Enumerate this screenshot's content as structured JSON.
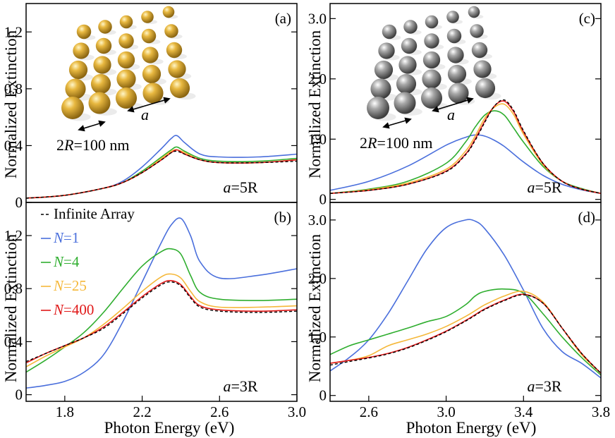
{
  "colors": {
    "N1": "#4a6fdc",
    "N4": "#2fae2f",
    "N25": "#f5b83a",
    "N400": "#e01818",
    "infinite": "#000000",
    "gold": "#d4a52c",
    "silver": "#9a9a9a"
  },
  "y_axis_label": "Normalized Extinction",
  "x_axis_label": "Photon Energy (eV)",
  "legend": [
    {
      "key": "infinite",
      "label": "Infinite Array",
      "dash": true
    },
    {
      "key": "N1",
      "prefix": "N",
      "label": "=1"
    },
    {
      "key": "N4",
      "prefix": "N",
      "label": "=4"
    },
    {
      "key": "N25",
      "prefix": "N",
      "label": "=25"
    },
    {
      "key": "N400",
      "prefix": "N",
      "label": "=400"
    }
  ],
  "insets": {
    "gold": {
      "spacing_label": "a",
      "size_prefix": "2",
      "size_symbol": "R",
      "size_suffix": "=100 nm",
      "material_icon": "gold-nanoparticle-array"
    },
    "silver": {
      "spacing_label": "a",
      "size_prefix": "2",
      "size_symbol": "R",
      "size_suffix": "=100 nm",
      "material_icon": "silver-nanoparticle-array"
    }
  },
  "chart_data": [
    {
      "id": "a",
      "type": "line",
      "panel_label": "(a)",
      "annotation": {
        "symbol": "a",
        "text": "=5R"
      },
      "xlabel": "",
      "ylabel": "Normalized Extinction",
      "xlim": [
        1.6,
        3.0
      ],
      "ylim": [
        0,
        1.4
      ],
      "xticks": [],
      "yticks": [
        0,
        0.4,
        0.8,
        1.2
      ],
      "ytick_labels": [
        "0",
        "0.4",
        "0.8",
        "1.2"
      ],
      "x": [
        1.6,
        1.8,
        2.0,
        2.1,
        2.2,
        2.3,
        2.35,
        2.38,
        2.42,
        2.5,
        2.6,
        2.8,
        3.0
      ],
      "series": [
        {
          "name": "N=1",
          "key": "N1",
          "values": [
            0.03,
            0.05,
            0.1,
            0.15,
            0.25,
            0.38,
            0.45,
            0.47,
            0.42,
            0.34,
            0.32,
            0.32,
            0.34
          ]
        },
        {
          "name": "N=4",
          "key": "N4",
          "values": [
            0.03,
            0.05,
            0.1,
            0.14,
            0.22,
            0.32,
            0.37,
            0.39,
            0.36,
            0.31,
            0.29,
            0.29,
            0.31
          ]
        },
        {
          "name": "N=25",
          "key": "N25",
          "values": [
            0.03,
            0.05,
            0.1,
            0.14,
            0.21,
            0.31,
            0.36,
            0.37,
            0.35,
            0.3,
            0.28,
            0.28,
            0.3
          ]
        },
        {
          "name": "N=400",
          "key": "N400",
          "values": [
            0.03,
            0.05,
            0.1,
            0.14,
            0.21,
            0.3,
            0.35,
            0.37,
            0.34,
            0.3,
            0.28,
            0.28,
            0.3
          ]
        },
        {
          "name": "Infinite Array",
          "key": "infinite",
          "values": [
            0.03,
            0.05,
            0.1,
            0.14,
            0.21,
            0.3,
            0.35,
            0.36,
            0.34,
            0.3,
            0.28,
            0.28,
            0.29
          ]
        }
      ]
    },
    {
      "id": "b",
      "type": "line",
      "panel_label": "(b)",
      "annotation": {
        "symbol": "a",
        "text": "=3R"
      },
      "xlabel": "Photon Energy (eV)",
      "ylabel": "Normalized Extinction",
      "xlim": [
        1.6,
        3.0
      ],
      "ylim": [
        -0.05,
        1.45
      ],
      "xticks": [
        1.8,
        2.2,
        2.6,
        3.0
      ],
      "xtick_labels": [
        "1.8",
        "2.2",
        "2.6",
        "3.0"
      ],
      "yticks": [
        0,
        0.4,
        0.8,
        1.2
      ],
      "ytick_labels": [
        "0",
        "0.4",
        "0.8",
        "1.2"
      ],
      "x": [
        1.6,
        1.7,
        1.8,
        1.9,
        2.0,
        2.1,
        2.2,
        2.3,
        2.35,
        2.4,
        2.45,
        2.5,
        2.6,
        2.8,
        3.0
      ],
      "series": [
        {
          "name": "N=1",
          "key": "N1",
          "values": [
            0.05,
            0.07,
            0.1,
            0.17,
            0.3,
            0.55,
            0.85,
            1.15,
            1.28,
            1.33,
            1.2,
            1.0,
            0.88,
            0.9,
            0.95
          ]
        },
        {
          "name": "N=4",
          "key": "N4",
          "values": [
            0.17,
            0.26,
            0.36,
            0.47,
            0.62,
            0.8,
            0.97,
            1.08,
            1.1,
            1.06,
            0.9,
            0.77,
            0.72,
            0.71,
            0.72
          ]
        },
        {
          "name": "N=25",
          "key": "N25",
          "values": [
            0.21,
            0.29,
            0.36,
            0.43,
            0.53,
            0.65,
            0.78,
            0.89,
            0.91,
            0.88,
            0.78,
            0.7,
            0.66,
            0.66,
            0.67
          ]
        },
        {
          "name": "N=400",
          "key": "N400",
          "values": [
            0.24,
            0.31,
            0.37,
            0.43,
            0.51,
            0.62,
            0.74,
            0.84,
            0.86,
            0.83,
            0.74,
            0.67,
            0.64,
            0.63,
            0.64
          ]
        },
        {
          "name": "Infinite Array",
          "key": "infinite",
          "values": [
            0.25,
            0.31,
            0.37,
            0.43,
            0.5,
            0.61,
            0.73,
            0.83,
            0.85,
            0.82,
            0.73,
            0.66,
            0.63,
            0.62,
            0.63
          ]
        }
      ]
    },
    {
      "id": "c",
      "type": "line",
      "panel_label": "(c)",
      "annotation": {
        "symbol": "a",
        "text": "=5R"
      },
      "xlabel": "",
      "ylabel": "Normalized Extinction",
      "xlim": [
        2.4,
        3.8
      ],
      "ylim": [
        -0.05,
        3.25
      ],
      "xticks": [],
      "yticks": [
        0,
        1.0,
        2.0,
        3.0
      ],
      "ytick_labels": [
        "0",
        "1.0",
        "2.0",
        "3.0"
      ],
      "x": [
        2.4,
        2.6,
        2.8,
        3.0,
        3.1,
        3.15,
        3.2,
        3.25,
        3.3,
        3.35,
        3.4,
        3.5,
        3.6,
        3.7,
        3.8
      ],
      "series": [
        {
          "name": "N=1",
          "key": "N1",
          "values": [
            0.15,
            0.3,
            0.55,
            0.9,
            1.03,
            1.07,
            1.05,
            0.98,
            0.88,
            0.75,
            0.62,
            0.4,
            0.25,
            0.16,
            0.1
          ]
        },
        {
          "name": "N=4",
          "key": "N4",
          "values": [
            0.1,
            0.17,
            0.3,
            0.6,
            0.95,
            1.2,
            1.4,
            1.47,
            1.4,
            1.18,
            0.95,
            0.55,
            0.3,
            0.18,
            0.1
          ]
        },
        {
          "name": "N=25",
          "key": "N25",
          "values": [
            0.1,
            0.16,
            0.27,
            0.5,
            0.8,
            1.05,
            1.35,
            1.53,
            1.58,
            1.4,
            1.08,
            0.58,
            0.3,
            0.17,
            0.1
          ]
        },
        {
          "name": "N=400",
          "key": "N400",
          "values": [
            0.1,
            0.15,
            0.25,
            0.47,
            0.75,
            1.0,
            1.3,
            1.55,
            1.63,
            1.45,
            1.12,
            0.6,
            0.3,
            0.17,
            0.1
          ]
        },
        {
          "name": "Infinite Array",
          "key": "infinite",
          "values": [
            0.1,
            0.15,
            0.25,
            0.46,
            0.74,
            0.98,
            1.28,
            1.55,
            1.65,
            1.47,
            1.14,
            0.6,
            0.3,
            0.17,
            0.1
          ]
        }
      ]
    },
    {
      "id": "d",
      "type": "line",
      "panel_label": "(d)",
      "annotation": {
        "symbol": "a",
        "text": "=3R"
      },
      "xlabel": "Photon Energy (eV)",
      "ylabel": "Normalized Extinction",
      "xlim": [
        2.4,
        3.8
      ],
      "ylim": [
        -0.1,
        3.3
      ],
      "xticks": [
        2.6,
        3.0,
        3.4,
        3.8
      ],
      "xtick_labels": [
        "2.6",
        "3.0",
        "3.4",
        "3.8"
      ],
      "yticks": [
        0,
        1.0,
        2.0,
        3.0
      ],
      "ytick_labels": [
        "0",
        "1.0",
        "2.0",
        "3.0"
      ],
      "x": [
        2.4,
        2.5,
        2.6,
        2.7,
        2.8,
        2.9,
        3.0,
        3.1,
        3.15,
        3.2,
        3.3,
        3.4,
        3.5,
        3.6,
        3.7,
        3.8
      ],
      "series": [
        {
          "name": "N=1",
          "key": "N1",
          "values": [
            0.42,
            0.65,
            0.95,
            1.4,
            1.95,
            2.5,
            2.87,
            3.0,
            2.98,
            2.85,
            2.4,
            1.8,
            1.15,
            0.75,
            0.55,
            0.3
          ]
        },
        {
          "name": "N=4",
          "key": "N4",
          "values": [
            0.7,
            0.85,
            0.95,
            1.05,
            1.15,
            1.26,
            1.35,
            1.55,
            1.7,
            1.78,
            1.82,
            1.75,
            1.4,
            1.0,
            0.65,
            0.35
          ]
        },
        {
          "name": "N=25",
          "key": "N25",
          "values": [
            0.55,
            0.6,
            0.68,
            0.85,
            0.95,
            1.05,
            1.18,
            1.35,
            1.45,
            1.55,
            1.7,
            1.78,
            1.6,
            1.15,
            0.7,
            0.38
          ]
        },
        {
          "name": "N=400",
          "key": "N400",
          "values": [
            0.55,
            0.6,
            0.65,
            0.72,
            0.82,
            0.95,
            1.1,
            1.28,
            1.38,
            1.48,
            1.63,
            1.73,
            1.58,
            1.15,
            0.72,
            0.38
          ]
        },
        {
          "name": "Infinite Array",
          "key": "infinite",
          "values": [
            0.52,
            0.58,
            0.64,
            0.71,
            0.81,
            0.94,
            1.09,
            1.27,
            1.37,
            1.47,
            1.62,
            1.72,
            1.58,
            1.15,
            0.72,
            0.38
          ]
        }
      ]
    }
  ]
}
